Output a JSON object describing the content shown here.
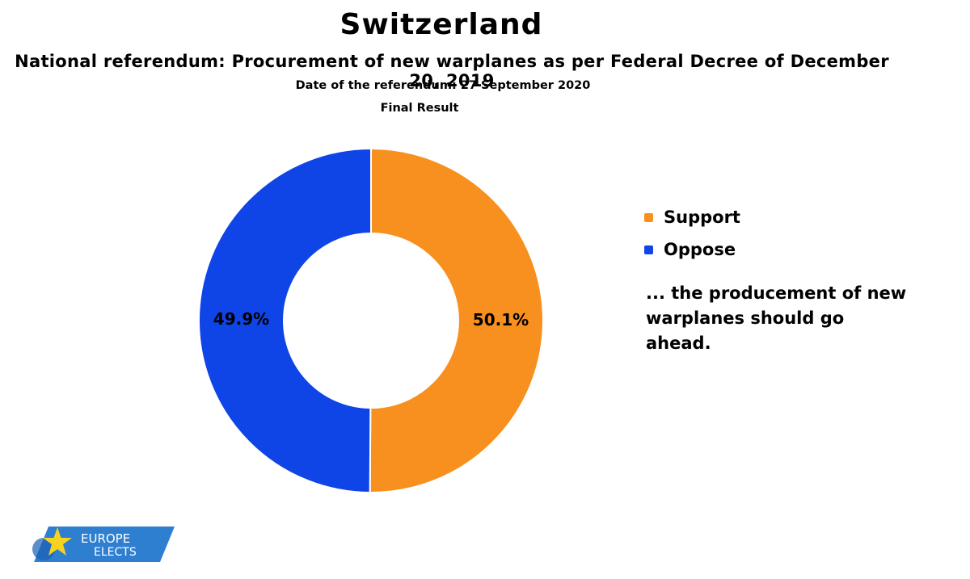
{
  "header": {
    "title": "Switzerland",
    "subtitle": "National referendum: Procurement of new warplanes as per Federal Decree of December 20, 2019",
    "date": "Date of the referendum: 27 September 2020",
    "status": "Final Result"
  },
  "chart_data": {
    "type": "pie",
    "donut": true,
    "slices": [
      {
        "label": "Support",
        "value": 50.1,
        "value_label": "50.1%",
        "color": "#f7901e"
      },
      {
        "label": "Oppose",
        "value": 49.9,
        "value_label": "49.9%",
        "color": "#0f44e6"
      }
    ],
    "legend_position": "right"
  },
  "caption": "... the producement of new warplanes should go ahead.",
  "logo": {
    "line1": "EUROPE",
    "line2": "ELECTS",
    "band_color": "#2f7fd0",
    "star_color": "#f7d21e"
  }
}
